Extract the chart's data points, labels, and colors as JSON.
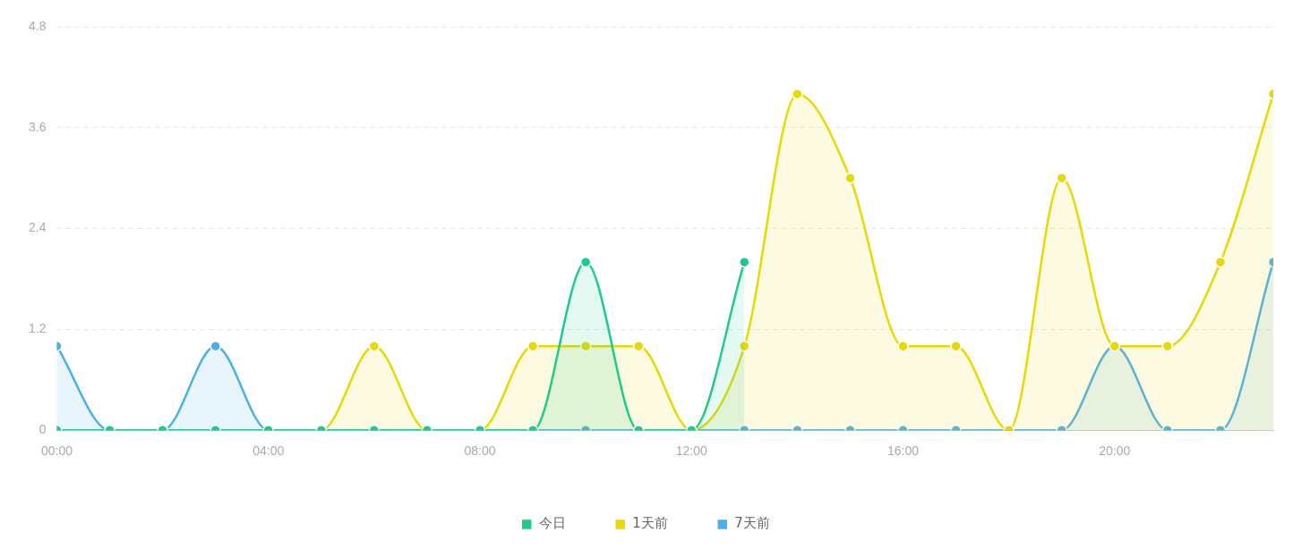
{
  "chart_data": {
    "type": "area",
    "x": [
      0,
      1,
      2,
      3,
      4,
      5,
      6,
      7,
      8,
      9,
      10,
      11,
      12,
      13,
      14,
      15,
      16,
      17,
      18,
      19,
      20,
      21,
      22,
      23
    ],
    "series": [
      {
        "name": "今日",
        "color": "#1ccc88",
        "values": [
          0,
          0,
          0,
          0,
          0,
          0,
          0,
          0,
          0,
          0,
          2,
          0,
          0,
          2,
          null,
          null,
          null,
          null,
          null,
          null,
          null,
          null,
          null,
          null
        ]
      },
      {
        "name": "1天前",
        "color": "#e8d900",
        "values": [
          0,
          0,
          0,
          0,
          0,
          0,
          1,
          0,
          0,
          1,
          1,
          1,
          0,
          1,
          4,
          3,
          1,
          1,
          0,
          3,
          1,
          1,
          2,
          4
        ]
      },
      {
        "name": "7天前",
        "color": "#48b0ea",
        "values": [
          1,
          0,
          0,
          1,
          0,
          0,
          0,
          0,
          0,
          0,
          0,
          0,
          0,
          0,
          0,
          0,
          0,
          0,
          0,
          0,
          1,
          0,
          0,
          2
        ]
      }
    ],
    "xlim": [
      0,
      23
    ],
    "xticks": [
      {
        "value": 0,
        "label": "00:00"
      },
      {
        "value": 4,
        "label": "04:00"
      },
      {
        "value": 8,
        "label": "08:00"
      },
      {
        "value": 12,
        "label": "12:00"
      },
      {
        "value": 16,
        "label": "16:00"
      },
      {
        "value": 20,
        "label": "20:00"
      }
    ],
    "ylim": [
      0,
      4.8
    ],
    "yticks": [
      0,
      1.2,
      2.4,
      3.6,
      4.8
    ],
    "grid": "y",
    "legend": "bottom",
    "marker": "circle",
    "line_style": "solid"
  }
}
